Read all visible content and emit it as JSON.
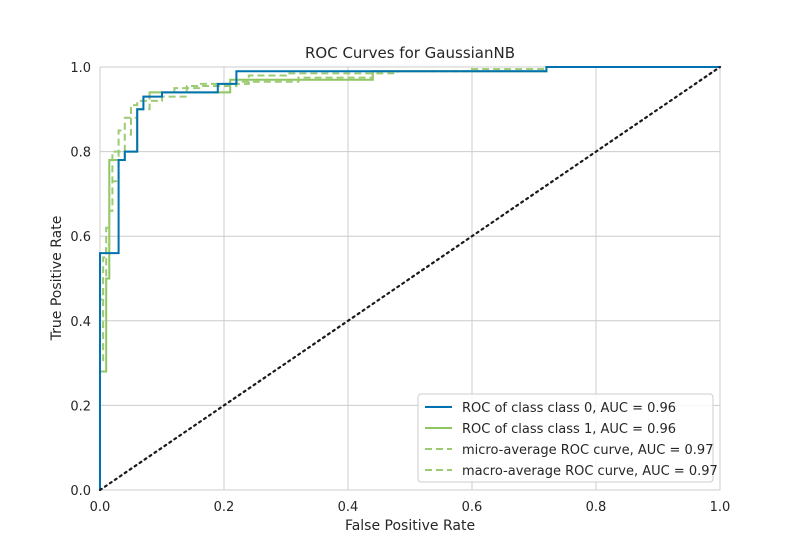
{
  "chart_data": {
    "type": "line",
    "title": "ROC Curves for GaussianNB",
    "xlabel": "False Positive Rate",
    "ylabel": "True Positive Rate",
    "xlim": [
      0.0,
      1.0
    ],
    "ylim": [
      0.0,
      1.0
    ],
    "xticks": [
      "0.0",
      "0.2",
      "0.4",
      "0.6",
      "0.8",
      "1.0"
    ],
    "yticks": [
      "0.0",
      "0.2",
      "0.4",
      "0.6",
      "0.8",
      "1.0"
    ],
    "grid": true,
    "legend_position": "lower-right",
    "background_color": "#ffffff",
    "grid_color": "#cccccc",
    "series": [
      {
        "name": "ROC of class class 0, AUC = 0.96",
        "color": "#0072b2",
        "dash": "solid",
        "points": [
          [
            0,
            0
          ],
          [
            0,
            0.56
          ],
          [
            0.03,
            0.56
          ],
          [
            0.03,
            0.78
          ],
          [
            0.04,
            0.78
          ],
          [
            0.04,
            0.8
          ],
          [
            0.06,
            0.8
          ],
          [
            0.06,
            0.9
          ],
          [
            0.07,
            0.9
          ],
          [
            0.07,
            0.93
          ],
          [
            0.1,
            0.93
          ],
          [
            0.1,
            0.94
          ],
          [
            0.19,
            0.94
          ],
          [
            0.19,
            0.96
          ],
          [
            0.22,
            0.96
          ],
          [
            0.22,
            0.99
          ],
          [
            0.72,
            0.99
          ],
          [
            0.72,
            1.0
          ],
          [
            1.0,
            1.0
          ]
        ]
      },
      {
        "name": "ROC of class class 1, AUC = 0.96",
        "color": "#8fc661",
        "dash": "solid",
        "points": [
          [
            0,
            0
          ],
          [
            0,
            0.28
          ],
          [
            0.01,
            0.28
          ],
          [
            0.01,
            0.5
          ],
          [
            0.015,
            0.5
          ],
          [
            0.015,
            0.78
          ],
          [
            0.04,
            0.78
          ],
          [
            0.04,
            0.8
          ],
          [
            0.06,
            0.8
          ],
          [
            0.06,
            0.9
          ],
          [
            0.07,
            0.9
          ],
          [
            0.07,
            0.93
          ],
          [
            0.08,
            0.93
          ],
          [
            0.08,
            0.94
          ],
          [
            0.21,
            0.94
          ],
          [
            0.21,
            0.97
          ],
          [
            0.44,
            0.97
          ],
          [
            0.44,
            0.99
          ],
          [
            0.72,
            0.99
          ],
          [
            0.72,
            1.0
          ],
          [
            1.0,
            1.0
          ]
        ]
      },
      {
        "name": "micro-average ROC curve, AUC = 0.97",
        "color": "#9ccb73",
        "dash": "dashed",
        "points": [
          [
            0,
            0
          ],
          [
            0,
            0.45
          ],
          [
            0.005,
            0.45
          ],
          [
            0.005,
            0.55
          ],
          [
            0.01,
            0.55
          ],
          [
            0.01,
            0.62
          ],
          [
            0.015,
            0.62
          ],
          [
            0.015,
            0.72
          ],
          [
            0.02,
            0.72
          ],
          [
            0.02,
            0.8
          ],
          [
            0.03,
            0.8
          ],
          [
            0.03,
            0.85
          ],
          [
            0.04,
            0.85
          ],
          [
            0.04,
            0.88
          ],
          [
            0.05,
            0.88
          ],
          [
            0.05,
            0.91
          ],
          [
            0.06,
            0.91
          ],
          [
            0.06,
            0.92
          ],
          [
            0.08,
            0.92
          ],
          [
            0.08,
            0.94
          ],
          [
            0.12,
            0.94
          ],
          [
            0.12,
            0.95
          ],
          [
            0.16,
            0.95
          ],
          [
            0.16,
            0.96
          ],
          [
            0.24,
            0.96
          ],
          [
            0.24,
            0.98
          ],
          [
            0.3,
            0.98
          ],
          [
            0.3,
            0.985
          ],
          [
            0.44,
            0.985
          ],
          [
            0.44,
            0.99
          ],
          [
            0.6,
            0.99
          ],
          [
            0.6,
            0.995
          ],
          [
            0.72,
            0.995
          ],
          [
            0.72,
            1.0
          ],
          [
            1.0,
            1.0
          ]
        ]
      },
      {
        "name": "macro-average ROC curve, AUC = 0.97",
        "color": "#9ccb73",
        "dash": "dashed",
        "points": [
          [
            0,
            0
          ],
          [
            0,
            0.3
          ],
          [
            0.005,
            0.3
          ],
          [
            0.005,
            0.48
          ],
          [
            0.01,
            0.48
          ],
          [
            0.01,
            0.58
          ],
          [
            0.015,
            0.58
          ],
          [
            0.015,
            0.66
          ],
          [
            0.02,
            0.66
          ],
          [
            0.02,
            0.73
          ],
          [
            0.03,
            0.73
          ],
          [
            0.03,
            0.8
          ],
          [
            0.04,
            0.8
          ],
          [
            0.04,
            0.84
          ],
          [
            0.05,
            0.84
          ],
          [
            0.05,
            0.88
          ],
          [
            0.06,
            0.88
          ],
          [
            0.06,
            0.9
          ],
          [
            0.08,
            0.9
          ],
          [
            0.08,
            0.92
          ],
          [
            0.1,
            0.92
          ],
          [
            0.1,
            0.93
          ],
          [
            0.14,
            0.93
          ],
          [
            0.14,
            0.955
          ],
          [
            0.22,
            0.955
          ],
          [
            0.22,
            0.965
          ],
          [
            0.32,
            0.965
          ],
          [
            0.32,
            0.975
          ],
          [
            0.44,
            0.975
          ],
          [
            0.44,
            0.985
          ],
          [
            0.48,
            0.985
          ],
          [
            0.48,
            0.99
          ],
          [
            0.72,
            0.99
          ],
          [
            0.72,
            1.0
          ],
          [
            1.0,
            1.0
          ]
        ]
      }
    ],
    "reference_line": {
      "points": [
        [
          0,
          0
        ],
        [
          1,
          1
        ]
      ],
      "color": "#1a1a1a",
      "dash": "dotted"
    }
  }
}
